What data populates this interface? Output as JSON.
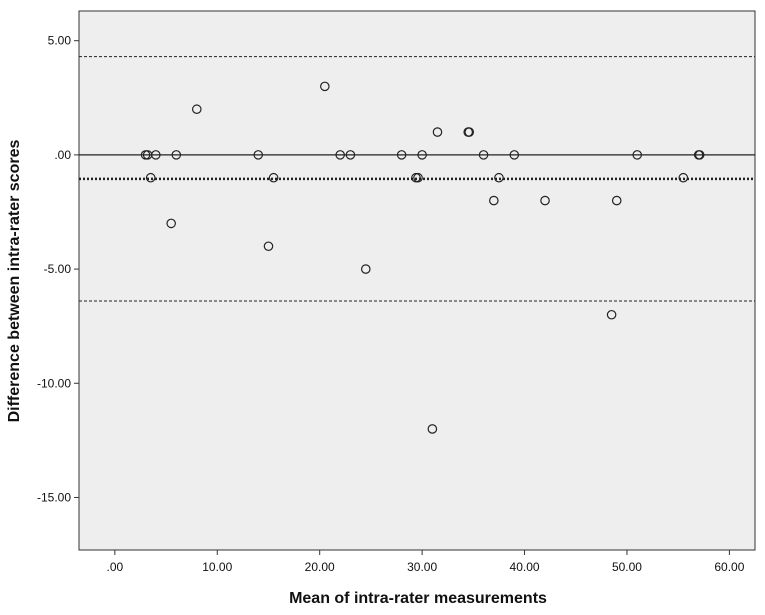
{
  "chart_data": {
    "type": "scatter",
    "title": "",
    "xlabel": "Mean of intra-rater measurements",
    "ylabel": "Difference between intra-rater scores",
    "xlim": [
      -3.5,
      62.5
    ],
    "ylim": [
      -17.3,
      6.3
    ],
    "grid": false,
    "x_ticks": [
      0,
      10,
      20,
      30,
      40,
      50,
      60
    ],
    "x_tick_labels": [
      ".00",
      "10.00",
      "20.00",
      "30.00",
      "40.00",
      "50.00",
      "60.00"
    ],
    "y_ticks": [
      5,
      0,
      -5,
      -10,
      -15
    ],
    "y_tick_labels": [
      "5.00",
      ".00",
      "-5.00",
      "-10.00",
      "-15.00"
    ],
    "reference_lines": [
      {
        "y": 4.3,
        "style": "dashed"
      },
      {
        "y": 0,
        "style": "solid"
      },
      {
        "y": -1.05,
        "style": "bold-dotted"
      },
      {
        "y": -6.4,
        "style": "dashed"
      }
    ],
    "points": [
      {
        "x": 3,
        "y": 0
      },
      {
        "x": 3.2,
        "y": 0
      },
      {
        "x": 4,
        "y": 0
      },
      {
        "x": 6,
        "y": 0
      },
      {
        "x": 3.5,
        "y": -1
      },
      {
        "x": 5.5,
        "y": -3
      },
      {
        "x": 8,
        "y": 2
      },
      {
        "x": 14,
        "y": 0
      },
      {
        "x": 15,
        "y": -4
      },
      {
        "x": 15.5,
        "y": -1
      },
      {
        "x": 20.5,
        "y": 3
      },
      {
        "x": 22,
        "y": 0
      },
      {
        "x": 23,
        "y": 0
      },
      {
        "x": 24.5,
        "y": -5
      },
      {
        "x": 28,
        "y": 0
      },
      {
        "x": 29.4,
        "y": -1
      },
      {
        "x": 29.6,
        "y": -1
      },
      {
        "x": 30,
        "y": 0
      },
      {
        "x": 31,
        "y": -12
      },
      {
        "x": 31.5,
        "y": 1
      },
      {
        "x": 34.5,
        "y": 1
      },
      {
        "x": 34.6,
        "y": 1
      },
      {
        "x": 36,
        "y": 0
      },
      {
        "x": 37,
        "y": -2
      },
      {
        "x": 37.5,
        "y": -1
      },
      {
        "x": 39,
        "y": 0
      },
      {
        "x": 42,
        "y": -2
      },
      {
        "x": 48.5,
        "y": -7
      },
      {
        "x": 49,
        "y": -2
      },
      {
        "x": 51,
        "y": 0
      },
      {
        "x": 55.5,
        "y": -1
      },
      {
        "x": 57,
        "y": 0
      },
      {
        "x": 57.1,
        "y": 0
      }
    ],
    "colors": {
      "plot_background": "#eeeeee",
      "frame": "#333333",
      "marker_stroke": "#222222",
      "line": "#222222"
    }
  }
}
